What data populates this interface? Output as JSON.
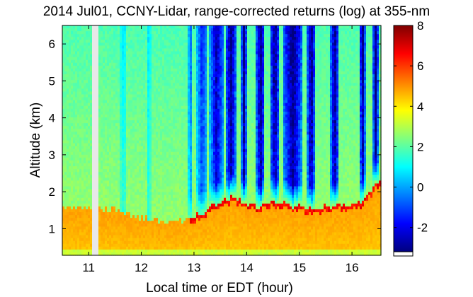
{
  "chart_data": {
    "type": "heatmap",
    "title": "2014 Jul01, CCNY-Lidar, range-corrected returns (log) at 355-nm",
    "xlabel": "Local time or EDT (hour)",
    "ylabel": "Altitude (km)",
    "xlim": [
      10.5,
      16.55
    ],
    "ylim": [
      0.28,
      6.5
    ],
    "xticks": [
      "11",
      "12",
      "13",
      "14",
      "15",
      "16"
    ],
    "yticks": [
      "1",
      "2",
      "3",
      "4",
      "5",
      "6"
    ],
    "colorbar": {
      "range": [
        -3.2,
        8
      ],
      "ticks": [
        "-2",
        "0",
        "2",
        "4",
        "6",
        "8"
      ],
      "colormap": "jet"
    },
    "data_gap": {
      "x": [
        11.08,
        11.18
      ]
    },
    "boundary_layer_top_km": [
      [
        10.5,
        1.6
      ],
      [
        11.5,
        1.5
      ],
      [
        12.0,
        1.3
      ],
      [
        12.5,
        1.15
      ],
      [
        12.9,
        1.25
      ],
      [
        13.3,
        1.55
      ],
      [
        13.7,
        1.85
      ],
      [
        14.2,
        1.6
      ],
      [
        14.5,
        1.75
      ],
      [
        14.9,
        1.6
      ],
      [
        15.3,
        1.55
      ],
      [
        15.8,
        1.65
      ],
      [
        16.2,
        1.7
      ],
      [
        16.55,
        2.4
      ]
    ],
    "clear_sky_columns": [
      [
        11.6,
        11.72
      ],
      [
        12.1,
        12.18
      ],
      [
        12.88,
        12.98
      ],
      [
        13.05,
        13.25
      ],
      [
        13.3,
        13.55
      ],
      [
        13.6,
        13.8
      ],
      [
        13.9,
        14.0
      ],
      [
        14.18,
        14.35
      ],
      [
        14.45,
        14.62
      ],
      [
        14.7,
        15.05
      ],
      [
        15.15,
        15.3
      ],
      [
        15.6,
        15.75
      ],
      [
        16.15,
        16.25
      ],
      [
        16.4,
        16.5
      ]
    ]
  }
}
